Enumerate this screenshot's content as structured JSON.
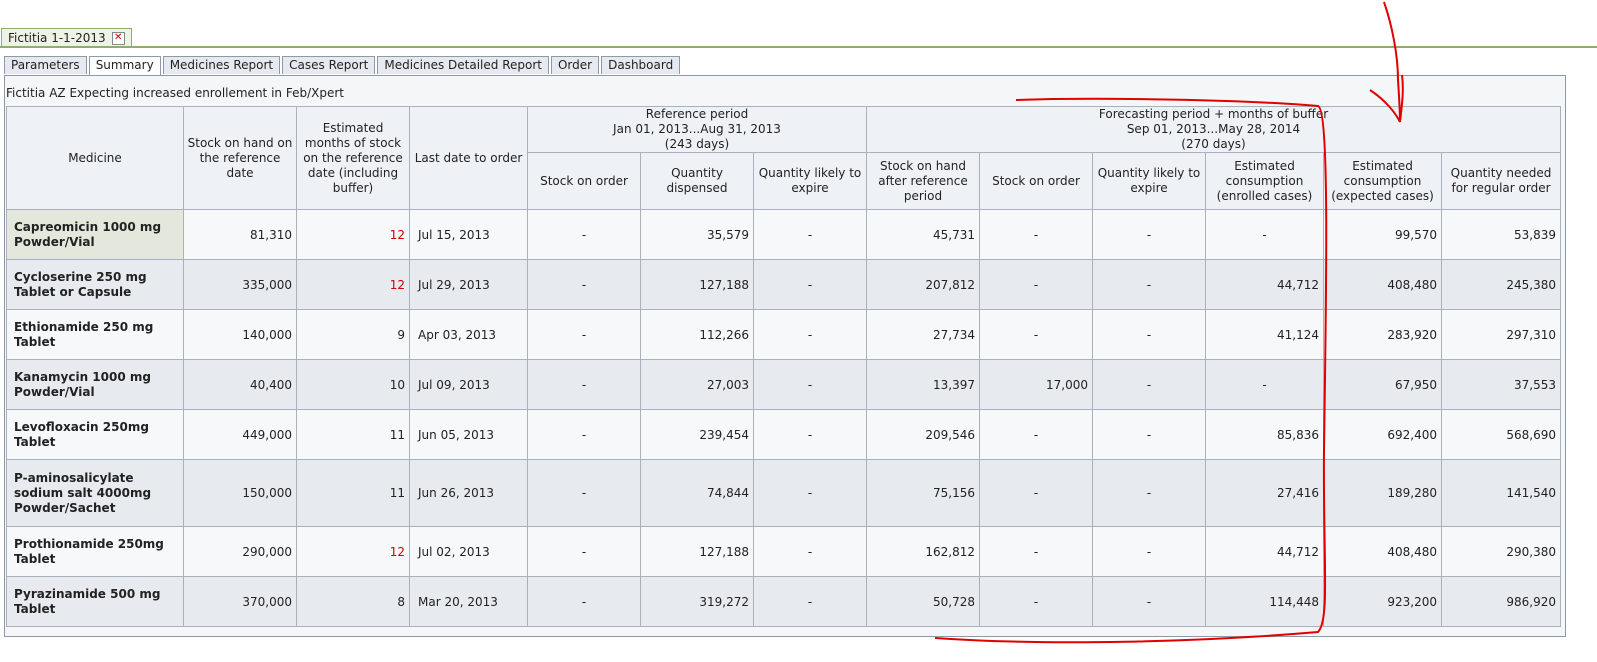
{
  "doc_tab": {
    "title": "Fictitia 1-1-2013",
    "close_glyph": "✕"
  },
  "tabs": [
    "Parameters",
    "Summary",
    "Medicines Report",
    "Cases Report",
    "Medicines Detailed Report",
    "Order",
    "Dashboard"
  ],
  "active_tab": "Summary",
  "subtitle": "Fictitia AZ Expecting increased enrollement in Feb/Xpert",
  "headers": {
    "medicine": "Medicine",
    "stock_ref": "Stock on hand on the reference date",
    "est_months": "Estimated months of stock on the reference date (including buffer)",
    "last_date": "Last date to order",
    "ref_group": [
      "Reference period",
      "Jan 01, 2013...Aug 31, 2013",
      "(243 days)"
    ],
    "fc_group": [
      "Forecasting period + months of buffer",
      "Sep 01, 2013...May 28, 2014",
      "(270 days)"
    ],
    "ref_stock_order": "Stock on order",
    "ref_qty_disp": "Quantity dispensed",
    "ref_qty_expire": "Quantity likely to expire",
    "fc_stock_after": "Stock on hand after reference period",
    "fc_stock_order": "Stock on order",
    "fc_qty_expire": "Quantity likely to expire",
    "fc_est_enrolled": "Estimated consumption (enrolled cases)",
    "fc_est_expected": "Estimated consumption (expected cases)",
    "fc_qty_needed": "Quantity needed for regular order"
  },
  "rows": [
    {
      "name": "Capreomicin 1000 mg Powder/Vial",
      "stock": "81,310",
      "months": "12",
      "months_red": true,
      "date": "Jul 15, 2013",
      "ref_order": "-",
      "dispensed": "35,579",
      "ref_expire": "-",
      "after": "45,731",
      "fc_order": "-",
      "fc_expire": "-",
      "enrolled": "-",
      "expected": "99,570",
      "needed": "53,839"
    },
    {
      "name": "Cycloserine 250 mg Tablet or Capsule",
      "stock": "335,000",
      "months": "12",
      "months_red": true,
      "date": "Jul 29, 2013",
      "ref_order": "-",
      "dispensed": "127,188",
      "ref_expire": "-",
      "after": "207,812",
      "fc_order": "-",
      "fc_expire": "-",
      "enrolled": "44,712",
      "expected": "408,480",
      "needed": "245,380"
    },
    {
      "name": "Ethionamide 250 mg Tablet",
      "stock": "140,000",
      "months": "9",
      "months_red": false,
      "date": "Apr 03, 2013",
      "ref_order": "-",
      "dispensed": "112,266",
      "ref_expire": "-",
      "after": "27,734",
      "fc_order": "-",
      "fc_expire": "-",
      "enrolled": "41,124",
      "expected": "283,920",
      "needed": "297,310"
    },
    {
      "name": "Kanamycin 1000 mg Powder/Vial",
      "stock": "40,400",
      "months": "10",
      "months_red": false,
      "date": "Jul 09, 2013",
      "ref_order": "-",
      "dispensed": "27,003",
      "ref_expire": "-",
      "after": "13,397",
      "fc_order": "17,000",
      "fc_expire": "-",
      "enrolled": "-",
      "expected": "67,950",
      "needed": "37,553"
    },
    {
      "name": "Levofloxacin 250mg Tablet",
      "stock": "449,000",
      "months": "11",
      "months_red": false,
      "date": "Jun 05, 2013",
      "ref_order": "-",
      "dispensed": "239,454",
      "ref_expire": "-",
      "after": "209,546",
      "fc_order": "-",
      "fc_expire": "-",
      "enrolled": "85,836",
      "expected": "692,400",
      "needed": "568,690"
    },
    {
      "name": "P-aminosalicylate sodium salt 4000mg Powder/Sachet",
      "stock": "150,000",
      "months": "11",
      "months_red": false,
      "date": "Jun 26, 2013",
      "ref_order": "-",
      "dispensed": "74,844",
      "ref_expire": "-",
      "after": "75,156",
      "fc_order": "-",
      "fc_expire": "-",
      "enrolled": "27,416",
      "expected": "189,280",
      "needed": "141,540"
    },
    {
      "name": "Prothionamide 250mg Tablet",
      "stock": "290,000",
      "months": "12",
      "months_red": true,
      "date": "Jul 02, 2013",
      "ref_order": "-",
      "dispensed": "127,188",
      "ref_expire": "-",
      "after": "162,812",
      "fc_order": "-",
      "fc_expire": "-",
      "enrolled": "44,712",
      "expected": "408,480",
      "needed": "290,380"
    },
    {
      "name": "Pyrazinamide 500 mg Tablet",
      "stock": "370,000",
      "months": "8",
      "months_red": false,
      "date": "Mar 20, 2013",
      "ref_order": "-",
      "dispensed": "319,272",
      "ref_expire": "-",
      "after": "50,728",
      "fc_order": "-",
      "fc_expire": "-",
      "enrolled": "114,448",
      "expected": "923,200",
      "needed": "986,920"
    }
  ],
  "colors": {
    "accent_green": "#8fae6d",
    "alert_red": "#d00000",
    "annotation_red": "#e00000"
  }
}
